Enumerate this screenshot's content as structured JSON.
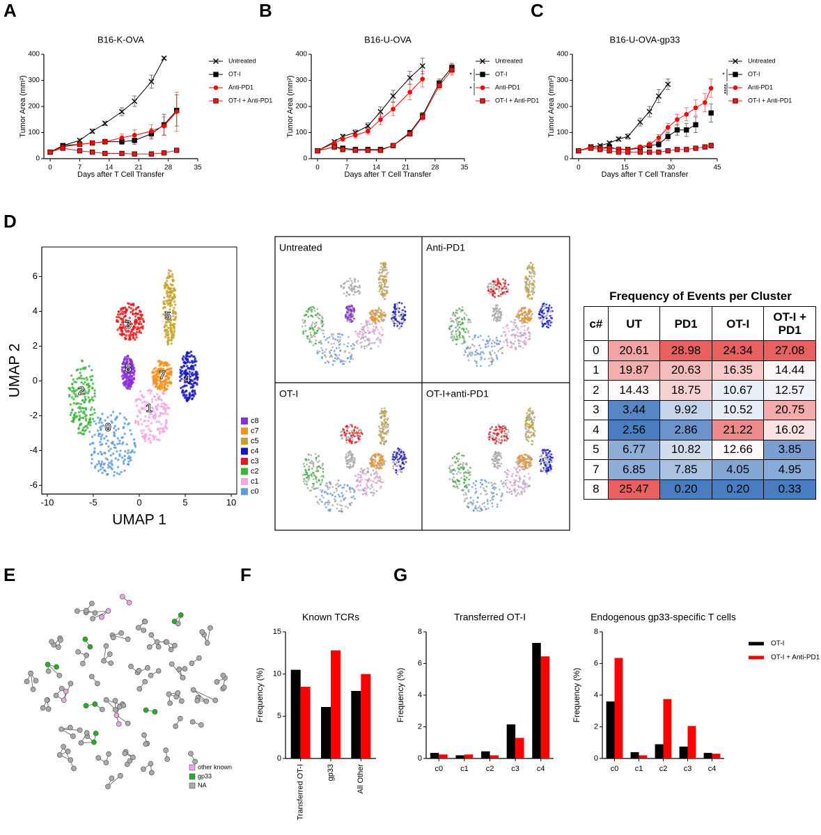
{
  "panel_labels": [
    "A",
    "B",
    "C",
    "D",
    "E",
    "F",
    "G"
  ],
  "chart_data": [
    {
      "type": "line",
      "title": "B16-K-OVA",
      "xlabel": "Days after T Cell Transfer",
      "ylabel": "Tumor Area (mm²)",
      "xlim": [
        -1.5,
        35
      ],
      "xticks": [
        0,
        7,
        14,
        21,
        28,
        35
      ],
      "ylim": [
        0,
        400
      ],
      "yticks": [
        0,
        100,
        200,
        300,
        400
      ],
      "x": [
        0,
        3,
        7,
        10,
        13,
        17,
        20,
        24,
        27,
        30
      ],
      "series": [
        {
          "name": "Untreated",
          "color": "#000000",
          "marker": "x",
          "values": [
            25,
            50,
            70,
            105,
            135,
            180,
            220,
            295,
            385,
            null
          ],
          "errors": [
            3,
            4,
            6,
            8,
            8,
            15,
            20,
            25,
            5,
            null
          ]
        },
        {
          "name": "OT-I",
          "color": "#000000",
          "marker": "square",
          "values": [
            25,
            50,
            55,
            60,
            65,
            65,
            70,
            95,
            130,
            185
          ],
          "errors": [
            3,
            4,
            6,
            8,
            8,
            10,
            15,
            20,
            40,
            60
          ]
        },
        {
          "name": "Anti-PD1",
          "color": "#ff0000",
          "marker": "circle",
          "values": [
            25,
            45,
            55,
            60,
            65,
            80,
            90,
            105,
            125,
            180
          ],
          "errors": [
            3,
            5,
            8,
            8,
            10,
            15,
            20,
            25,
            35,
            75
          ]
        },
        {
          "name": "OT-I + Anti-PD1",
          "color": "#e31a1c",
          "marker": "square",
          "values": [
            25,
            40,
            30,
            25,
            20,
            20,
            18,
            18,
            22,
            32
          ],
          "errors": [
            3,
            4,
            5,
            4,
            4,
            4,
            3,
            4,
            5,
            5
          ]
        }
      ]
    },
    {
      "type": "line",
      "title": "B16-U-OVA",
      "xlabel": "Days after T Cell Transfer",
      "ylabel": "Tumor Area (mm²)",
      "xlim": [
        -1.5,
        35
      ],
      "xticks": [
        0,
        7,
        14,
        21,
        28,
        35
      ],
      "ylim": [
        0,
        400
      ],
      "yticks": [
        0,
        100,
        200,
        300,
        400
      ],
      "x": [
        0,
        4,
        6,
        9,
        12,
        15,
        18,
        22,
        25,
        29,
        32
      ],
      "annotations": [
        "*",
        "*"
      ],
      "series": [
        {
          "name": "Untreated",
          "color": "#000000",
          "marker": "x",
          "values": [
            30,
            65,
            85,
            100,
            125,
            180,
            240,
            310,
            355,
            null,
            null
          ],
          "errors": [
            3,
            5,
            8,
            10,
            12,
            18,
            22,
            25,
            30,
            null,
            null
          ]
        },
        {
          "name": "OT-I",
          "color": "#000000",
          "marker": "square",
          "values": [
            30,
            45,
            40,
            35,
            35,
            35,
            50,
            100,
            165,
            290,
            350
          ],
          "errors": [
            3,
            4,
            4,
            4,
            4,
            4,
            6,
            8,
            12,
            15,
            15
          ]
        },
        {
          "name": "Anti-PD1",
          "color": "#ff0000",
          "marker": "circle",
          "values": [
            30,
            60,
            75,
            90,
            105,
            150,
            190,
            255,
            305,
            null,
            340
          ],
          "errors": [
            3,
            5,
            8,
            10,
            12,
            20,
            25,
            30,
            30,
            null,
            20
          ]
        },
        {
          "name": "OT-I + Anti-PD1",
          "color": "#e31a1c",
          "marker": "square",
          "values": [
            30,
            45,
            35,
            32,
            32,
            32,
            50,
            95,
            160,
            280,
            340
          ],
          "errors": [
            3,
            4,
            4,
            4,
            4,
            4,
            6,
            8,
            12,
            15,
            15
          ]
        }
      ]
    },
    {
      "type": "line",
      "title": "B16-U-OVA-gp33",
      "xlabel": "Days after T Cell Transfer",
      "ylabel": "Tumor Area (mm²)",
      "xlim": [
        -2,
        45
      ],
      "xticks": [
        0,
        15,
        30,
        45
      ],
      "ylim": [
        0,
        400
      ],
      "yticks": [
        0,
        100,
        200,
        300,
        400
      ],
      "x": [
        0,
        4,
        7,
        10,
        13,
        16,
        20,
        23,
        26,
        29,
        32,
        35,
        38,
        41,
        43
      ],
      "annotations": [
        "*",
        "****"
      ],
      "series": [
        {
          "name": "Untreated",
          "color": "#000000",
          "marker": "x",
          "values": [
            30,
            45,
            50,
            60,
            75,
            85,
            140,
            180,
            240,
            285,
            null,
            null,
            null,
            null,
            null
          ],
          "errors": [
            3,
            5,
            5,
            6,
            8,
            10,
            15,
            20,
            25,
            20,
            null,
            null,
            null,
            null,
            null
          ]
        },
        {
          "name": "OT-I",
          "color": "#000000",
          "marker": "square",
          "values": [
            30,
            45,
            40,
            45,
            35,
            35,
            40,
            50,
            55,
            85,
            110,
            110,
            130,
            null,
            175
          ],
          "errors": [
            3,
            5,
            5,
            5,
            5,
            5,
            8,
            10,
            12,
            15,
            20,
            25,
            30,
            null,
            35
          ]
        },
        {
          "name": "Anti-PD1",
          "color": "#ff0000",
          "marker": "circle",
          "values": [
            30,
            45,
            40,
            40,
            38,
            35,
            45,
            55,
            80,
            120,
            150,
            170,
            195,
            215,
            270
          ],
          "errors": [
            3,
            5,
            5,
            5,
            5,
            5,
            8,
            10,
            12,
            15,
            20,
            25,
            30,
            35,
            35
          ]
        },
        {
          "name": "OT-I + Anti-PD1",
          "color": "#e31a1c",
          "marker": "square",
          "values": [
            30,
            40,
            35,
            30,
            25,
            25,
            25,
            25,
            25,
            30,
            35,
            35,
            40,
            45,
            50
          ],
          "errors": [
            3,
            4,
            4,
            4,
            3,
            3,
            3,
            3,
            3,
            4,
            5,
            5,
            6,
            8,
            10
          ]
        }
      ]
    },
    {
      "type": "scatter",
      "xlabel": "UMAP 1",
      "ylabel": "UMAP 2",
      "xlim": [
        -10.6,
        10.6
      ],
      "xticks": [
        -10,
        -5,
        0,
        5,
        10
      ],
      "ylim": [
        -6.5,
        7.7
      ],
      "yticks": [
        -6,
        -4,
        -2,
        0,
        2,
        4,
        6
      ],
      "clusters": [
        {
          "name": "c8",
          "label": "8",
          "color": "#8b2fd6",
          "x": -1.2,
          "y": 0.7
        },
        {
          "name": "c7",
          "label": "7",
          "color": "#f5921e",
          "x": 2.5,
          "y": 0.3
        },
        {
          "name": "c5",
          "label": "5",
          "color": "#c5a22a",
          "x": 3.1,
          "y": 3.7
        },
        {
          "name": "c4",
          "label": "4",
          "color": "#1515c8",
          "x": 5.2,
          "y": 0.1
        },
        {
          "name": "c3",
          "label": "3",
          "color": "#e31a1c",
          "x": -1.2,
          "y": 3.2
        },
        {
          "name": "c2",
          "label": "2",
          "color": "#3cb43c",
          "x": -6.3,
          "y": -0.6
        },
        {
          "name": "c1",
          "label": "1",
          "color": "#f4a6e6",
          "x": 1.07,
          "y": -1.6
        },
        {
          "name": "c0",
          "label": "0",
          "color": "#5b9be0",
          "x": -3.4,
          "y": -2.7
        }
      ]
    },
    {
      "type": "bar",
      "title": "Known TCRs",
      "ylabel": "Frequency (%)",
      "x_label_rotation": -90,
      "categories": [
        "Transferred OT-I",
        "gp33",
        "All Other"
      ],
      "ylim": [
        0,
        15
      ],
      "yticks": [
        0,
        5,
        10,
        15
      ],
      "series": [
        {
          "color": "#000000",
          "values": [
            10.5,
            6.1,
            8.0
          ]
        },
        {
          "color": "#ff0000",
          "values": [
            8.5,
            12.8,
            10.0
          ]
        }
      ]
    },
    {
      "type": "bar",
      "title": "Transferred OT-I",
      "ylabel": "Frequency (%)",
      "categories": [
        "c0",
        "c1",
        "c2",
        "c3",
        "c4"
      ],
      "ylim": [
        0,
        8
      ],
      "yticks": [
        0,
        2,
        4,
        6,
        8
      ],
      "series": [
        {
          "color": "#000000",
          "values": [
            0.35,
            0.2,
            0.45,
            2.15,
            7.3
          ]
        },
        {
          "color": "#ff0000",
          "values": [
            0.25,
            0.25,
            0.2,
            1.3,
            6.45
          ]
        }
      ]
    },
    {
      "type": "bar",
      "title": "Endogenous gp33-specific T cells",
      "ylabel": "Frequency (%)",
      "legend": "right",
      "categories": [
        "c0",
        "c1",
        "c2",
        "c3",
        "c4"
      ],
      "ylim": [
        0,
        8
      ],
      "yticks": [
        0,
        2,
        4,
        6,
        8
      ],
      "series": [
        {
          "name": "OT-I",
          "color": "#000000",
          "values": [
            3.6,
            0.4,
            0.9,
            0.75,
            0.35
          ]
        },
        {
          "name": "OT-I + Anti-PD1",
          "color": "#ff0000",
          "values": [
            6.35,
            0.2,
            3.75,
            2.05,
            0.3
          ]
        }
      ]
    }
  ],
  "umap_panels": {
    "titles": [
      "Untreated",
      "Anti-PD1",
      "OT-I",
      "OT-I+anti-PD1"
    ]
  },
  "table": {
    "title": "Frequency of Events per Cluster",
    "header": [
      "c#",
      "UT",
      "PD1",
      "OT-I",
      "OT-I + PD1"
    ],
    "rows": [
      [
        "0",
        "20.61",
        "28.98",
        "24.34",
        "27.08"
      ],
      [
        "1",
        "19.87",
        "20.63",
        "16.35",
        "14.44"
      ],
      [
        "2",
        "14.43",
        "18.75",
        "10.67",
        "12.57"
      ],
      [
        "3",
        "3.44",
        "9.92",
        "10.52",
        "20.75"
      ],
      [
        "4",
        "2.56",
        "2.86",
        "21.22",
        "16.02"
      ],
      [
        "5",
        "6.77",
        "10.82",
        "12.66",
        "3.85"
      ],
      [
        "7",
        "6.85",
        "7.85",
        "4.05",
        "4.95"
      ],
      [
        "8",
        "25.47",
        "0.20",
        "0.20",
        "0.33"
      ]
    ]
  },
  "network": {
    "legend": [
      {
        "name": "other known",
        "color": "#e9a6ea"
      },
      {
        "name": "gp33",
        "color": "#22b022"
      },
      {
        "name": "NA",
        "color": "#aaaaaa"
      }
    ]
  }
}
